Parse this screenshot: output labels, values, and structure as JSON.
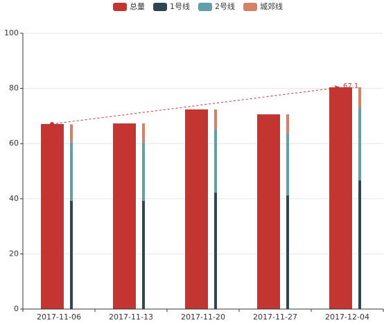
{
  "chart_data": {
    "type": "bar",
    "categories": [
      "2017-11-06",
      "2017-11-13",
      "2017-11-20",
      "2017-11-27",
      "2017-12-04"
    ],
    "series": [
      {
        "name": "总量",
        "color": "#c23531",
        "values": [
          67.1,
          67.3,
          72.4,
          70.6,
          80.4
        ]
      },
      {
        "name": "1号线",
        "color": "#2f4554",
        "stack": true,
        "values": [
          39.2,
          39.2,
          42.2,
          41.2,
          46.7
        ]
      },
      {
        "name": "2号线",
        "color": "#61a0a8",
        "stack": true,
        "values": [
          21.4,
          21.1,
          23.1,
          22.4,
          26.4
        ]
      },
      {
        "name": "城郊线",
        "color": "#d48265",
        "stack": true,
        "values": [
          6.4,
          7.0,
          7.1,
          7.0,
          7.3
        ]
      }
    ],
    "mark_line": {
      "start": 67.1,
      "end": 80.4,
      "label": "67.1"
    },
    "ylim": [
      0,
      100
    ],
    "yticks": [
      0,
      20,
      40,
      60,
      80,
      100
    ],
    "grid": true,
    "legend": "top"
  }
}
